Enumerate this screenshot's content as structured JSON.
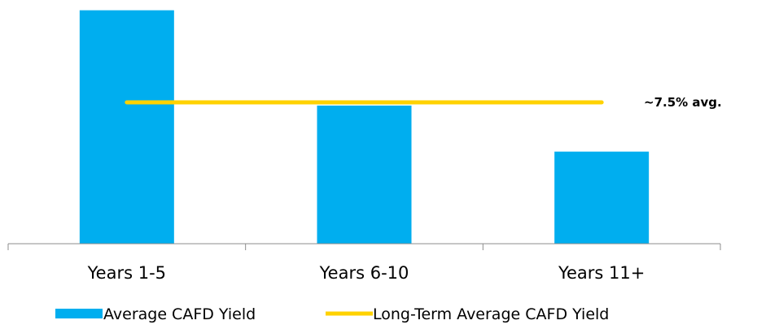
{
  "chart_data": {
    "type": "bar",
    "categories": [
      "Years 1-5",
      "Years 6-10",
      "Years 11+"
    ],
    "series": [
      {
        "name": "Average CAFD Yield",
        "type": "bar",
        "color": "#00AEEF",
        "values": [
          10.9,
          6.45,
          4.3
        ]
      },
      {
        "name": "Long-Term Average CAFD Yield",
        "type": "line",
        "color": "#FFD200",
        "values": [
          6.6,
          6.6,
          6.6
        ]
      }
    ],
    "annotation": "~7.5% avg.",
    "ylim": [
      0,
      11
    ],
    "grid": false,
    "y_axis_visible": false,
    "legend_position": "bottom"
  }
}
